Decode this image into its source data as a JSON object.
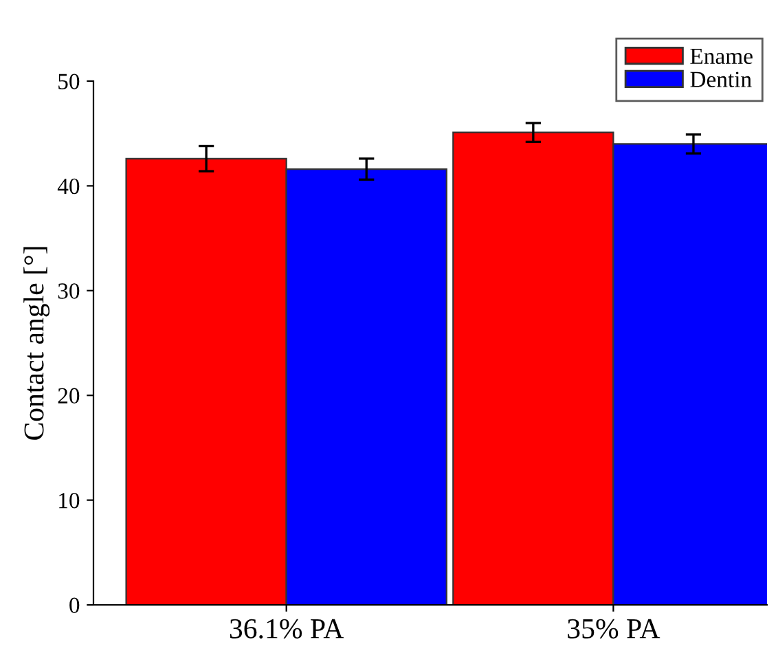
{
  "chart_data": {
    "type": "bar",
    "ylabel": "Contact angle [°]",
    "categories": [
      "36.1% PA",
      "35% PA"
    ],
    "series": [
      {
        "name": "Ename",
        "color": "#ff0000",
        "values": [
          42.6,
          45.1
        ],
        "errors": [
          1.2,
          0.9
        ]
      },
      {
        "name": "Dentin",
        "color": "#0000ff",
        "values": [
          41.6,
          44.0
        ],
        "errors": [
          1.0,
          0.9
        ]
      }
    ],
    "ylim": [
      0,
      50
    ],
    "yticks": [
      0,
      10,
      20,
      30,
      40,
      50
    ],
    "grid": false,
    "legend": "top right"
  }
}
